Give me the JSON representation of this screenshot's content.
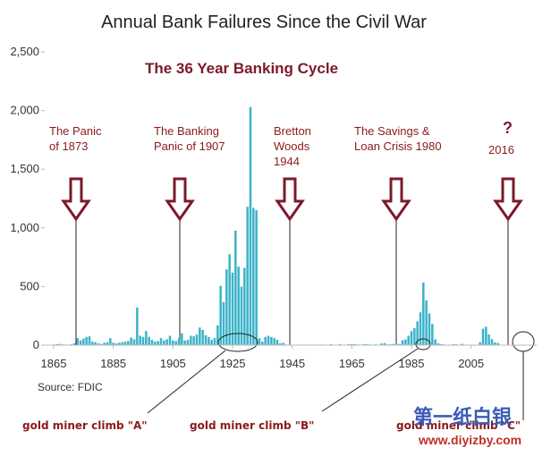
{
  "chart_data": {
    "type": "bar",
    "title": "Annual Bank Failures Since the Civil War",
    "subtitle": "The 36 Year Banking Cycle",
    "source": "Source: FDIC",
    "color": "#3bb3c9",
    "x": [
      1865,
      1866,
      1867,
      1868,
      1869,
      1870,
      1871,
      1872,
      1873,
      1874,
      1875,
      1876,
      1877,
      1878,
      1879,
      1880,
      1881,
      1882,
      1883,
      1884,
      1885,
      1886,
      1887,
      1888,
      1889,
      1890,
      1891,
      1892,
      1893,
      1894,
      1895,
      1896,
      1897,
      1898,
      1899,
      1900,
      1901,
      1902,
      1903,
      1904,
      1905,
      1906,
      1907,
      1908,
      1909,
      1910,
      1911,
      1912,
      1913,
      1914,
      1915,
      1916,
      1917,
      1918,
      1919,
      1920,
      1921,
      1922,
      1923,
      1924,
      1925,
      1926,
      1927,
      1928,
      1929,
      1930,
      1931,
      1932,
      1933,
      1934,
      1935,
      1936,
      1937,
      1938,
      1939,
      1940,
      1941,
      1942,
      1943,
      1944,
      1945,
      1946,
      1947,
      1948,
      1949,
      1950,
      1951,
      1952,
      1953,
      1954,
      1955,
      1956,
      1957,
      1958,
      1959,
      1960,
      1961,
      1962,
      1963,
      1964,
      1965,
      1966,
      1967,
      1968,
      1969,
      1970,
      1971,
      1972,
      1973,
      1974,
      1975,
      1976,
      1977,
      1978,
      1979,
      1980,
      1981,
      1982,
      1983,
      1984,
      1985,
      1986,
      1987,
      1988,
      1989,
      1990,
      1991,
      1992,
      1993,
      1994,
      1995,
      1996,
      1997,
      1998,
      1999,
      2000,
      2001,
      2002,
      2003,
      2004,
      2005,
      2006,
      2007,
      2008,
      2009,
      2010,
      2011,
      2012,
      2013,
      2014
    ],
    "values": [
      5,
      8,
      10,
      6,
      5,
      4,
      7,
      15,
      60,
      40,
      55,
      70,
      75,
      30,
      25,
      15,
      10,
      20,
      25,
      60,
      20,
      15,
      20,
      25,
      30,
      35,
      65,
      50,
      320,
      80,
      70,
      120,
      70,
      45,
      30,
      35,
      60,
      40,
      50,
      80,
      40,
      35,
      60,
      100,
      40,
      45,
      80,
      75,
      90,
      150,
      130,
      85,
      70,
      45,
      60,
      168,
      505,
      367,
      646,
      775,
      618,
      976,
      669,
      499,
      659,
      1180,
      2030,
      1170,
      1150,
      60,
      30,
      70,
      80,
      70,
      60,
      45,
      15,
      20,
      5,
      2,
      1,
      1,
      5,
      3,
      5,
      4,
      3,
      4,
      3,
      4,
      5,
      3,
      3,
      8,
      4,
      2,
      9,
      3,
      2,
      8,
      9,
      8,
      5,
      3,
      9,
      8,
      6,
      3,
      6,
      4,
      14,
      17,
      6,
      7,
      10,
      10,
      10,
      42,
      48,
      80,
      120,
      145,
      203,
      280,
      534,
      382,
      271,
      181,
      50,
      15,
      8,
      6,
      1,
      3,
      8,
      7,
      4,
      11,
      3,
      4,
      0,
      0,
      3,
      25,
      140,
      157,
      92,
      51,
      24,
      18
    ],
    "xlim": [
      1862,
      2027
    ],
    "xticks": [
      1865,
      1885,
      1905,
      1925,
      1945,
      1965,
      1985,
      2005
    ],
    "ylim": [
      0,
      2500
    ],
    "yticks": [
      0,
      500,
      {
        "value": 1000,
        "label": "1,000"
      },
      {
        "value": 1500,
        "label": "1,500"
      },
      {
        "value": 2000,
        "label": "2,000"
      },
      {
        "value": 2500,
        "label": "2,500"
      }
    ],
    "annotations": [
      {
        "lines": [
          "The Panic",
          "of 1873"
        ]
      },
      {
        "lines": [
          "The Banking",
          "Panic of 1907"
        ]
      },
      {
        "lines": [
          "Bretton",
          "Woods",
          "1944"
        ]
      },
      {
        "lines": [
          "The Savings &",
          "Loan Crisis 1980"
        ]
      },
      {
        "lines": [
          "?",
          "2016"
        ]
      }
    ],
    "callouts": [
      "gold miner climb \"A\"",
      "gold miner climb \"B\"",
      "gold miner climb \"C\""
    ],
    "watermark": [
      "第一纸白银",
      "www.diyizby.com"
    ]
  }
}
